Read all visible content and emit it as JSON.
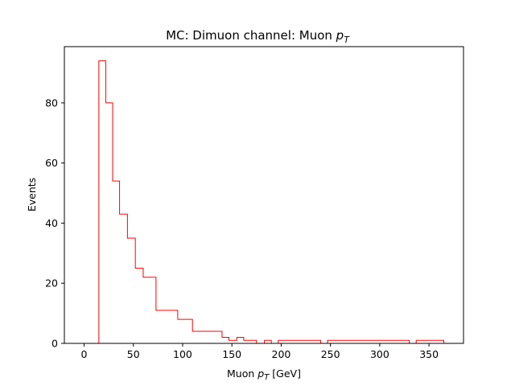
{
  "chart_data": {
    "type": "histogram",
    "title": "MC: Dimuon channel: Muon p_T",
    "title_text": "MC: Dimuon channel: Muon ",
    "title_var": "p",
    "title_sub": "T",
    "xlabel_text": "Muon ",
    "xlabel_var": "p",
    "xlabel_sub": "T",
    "xlabel_unit": " [GeV]",
    "ylabel": "Events",
    "xlim": [
      -20,
      385
    ],
    "ylim": [
      0,
      98.7
    ],
    "xticks": [
      0,
      50,
      100,
      150,
      200,
      250,
      300,
      350
    ],
    "yticks": [
      0,
      20,
      40,
      60,
      80
    ],
    "color": "#ff0000",
    "bin_edges": [
      0,
      15,
      22,
      29,
      36,
      44,
      52,
      60,
      73,
      95,
      110,
      140,
      147,
      155,
      162,
      175,
      183,
      190,
      197,
      240,
      247,
      330,
      337,
      365
    ],
    "counts": [
      0,
      94,
      80,
      54,
      43,
      35,
      25,
      22,
      11,
      8,
      4,
      2,
      1,
      2,
      1,
      0,
      1,
      0,
      1,
      0,
      1,
      0,
      1
    ]
  }
}
